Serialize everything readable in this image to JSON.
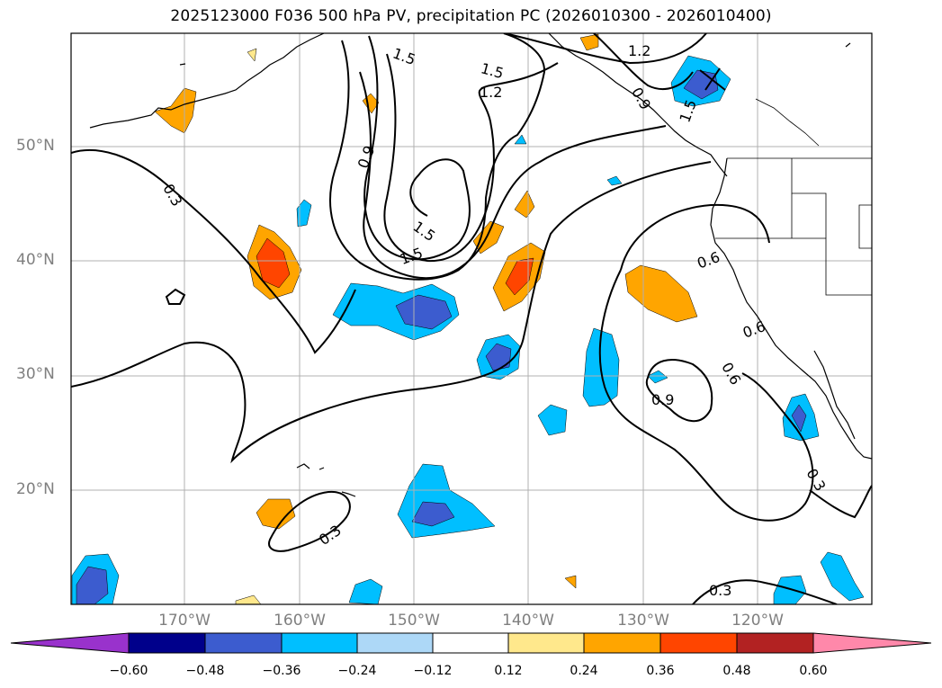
{
  "title": "2025123000 F036 500 hPa PV, precipitation PC (2026010300 - 2026010400)",
  "lat_labels": [
    "50°N",
    "40°N",
    "30°N",
    "20°N"
  ],
  "lon_labels": [
    "170°W",
    "160°W",
    "150°W",
    "140°W",
    "130°W",
    "120°W"
  ],
  "contour_labels": [
    "0.3",
    "0.3",
    "0.3",
    "0.3",
    "0.6",
    "0.6",
    "0.6",
    "0.9",
    "0.9",
    "0.9",
    "1.2",
    "1.2",
    "1.5",
    "1.5",
    "1.5",
    "1.5",
    "1.5"
  ],
  "colorbar": {
    "ticks": [
      "−0.60",
      "−0.48",
      "−0.36",
      "−0.24",
      "−0.12",
      "0.12",
      "0.24",
      "0.36",
      "0.48",
      "0.60"
    ],
    "colors": {
      "lt_-0.60": "#9932cc",
      "-0.60_-0.48": "#00008b",
      "-0.48_-0.36": "#3c5ccf",
      "-0.36_-0.24": "#00bfff",
      "-0.24_-0.12": "#add8f7",
      "-0.12_0.12": "#ffffff",
      "0.12_0.24": "#ffe88c",
      "0.24_0.36": "#ffa500",
      "0.36_0.48": "#ff4500",
      "0.48_0.60": "#b22222",
      "gt_0.60": "#ff88aa"
    }
  }
}
